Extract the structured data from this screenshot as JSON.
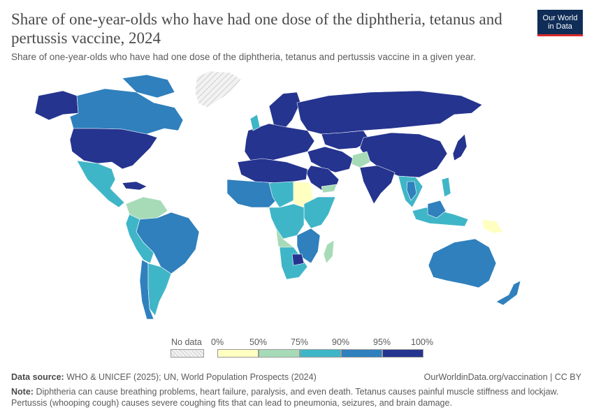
{
  "header": {
    "title": "Share of one-year-olds who have had one dose of the diphtheria, tetanus and pertussis vaccine, 2024",
    "subtitle": "Share of one-year-olds who have had one dose of the diphtheria, tetanus and pertussis vaccine in a given year.",
    "logo_line1": "Our World",
    "logo_line2": "in Data"
  },
  "legend": {
    "no_data_label": "No data",
    "bins": [
      "0%",
      "50%",
      "75%",
      "90%",
      "95%",
      "100%"
    ],
    "colors": [
      "#ffffc2",
      "#a7dbb8",
      "#3fb6c7",
      "#2f80bd",
      "#25348f"
    ]
  },
  "footer": {
    "source_label": "Data source:",
    "source_text": "WHO & UNICEF (2025); UN, World Population Prospects (2024)",
    "url_text": "OurWorldinData.org/vaccination | CC BY",
    "note_label": "Note:",
    "note_line1": "Diphtheria can cause breathing problems, heart failure, paralysis, and even death. Tetanus causes painful muscle stiffness and lockjaw.",
    "note_line2": "Pertussis (whooping cough) causes severe coughing fits that can lead to pneumonia, seizures, and brain damage."
  },
  "map_regions": [
    {
      "name": "north-america",
      "bin": 4
    },
    {
      "name": "canada",
      "bin": 3
    },
    {
      "name": "greenland",
      "bin": -1
    },
    {
      "name": "mexico-central-america",
      "bin": 2
    },
    {
      "name": "south-america",
      "bin": 3
    },
    {
      "name": "europe",
      "bin": 4
    },
    {
      "name": "russia",
      "bin": 4
    },
    {
      "name": "china",
      "bin": 4
    },
    {
      "name": "middle-east",
      "bin": 4
    },
    {
      "name": "afghanistan",
      "bin": 1
    },
    {
      "name": "africa",
      "bin": 2
    },
    {
      "name": "sudan",
      "bin": 0
    },
    {
      "name": "australia",
      "bin": 3
    },
    {
      "name": "indonesia",
      "bin": 2
    },
    {
      "name": "papua-new-guinea",
      "bin": 0
    }
  ]
}
